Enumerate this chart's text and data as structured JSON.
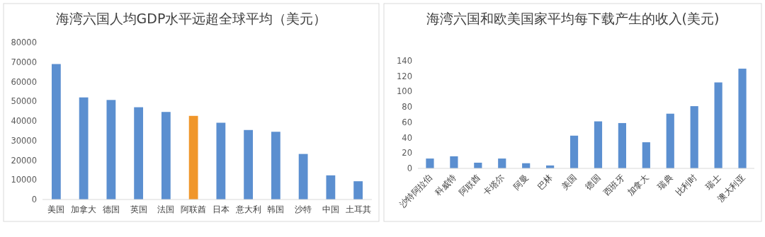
{
  "chart_data": [
    {
      "type": "bar",
      "title": "海湾六国人均GDP水平远超全球平均（美元）",
      "categories": [
        "美国",
        "加拿大",
        "德国",
        "英国",
        "法国",
        "阿联酋",
        "日本",
        "意大利",
        "韩国",
        "沙特",
        "中国",
        "土耳其"
      ],
      "values": [
        69000,
        52000,
        50700,
        47000,
        44600,
        42600,
        39100,
        35400,
        34500,
        23200,
        12300,
        9300
      ],
      "colors": [
        "#5b8fd0",
        "#5b8fd0",
        "#5b8fd0",
        "#5b8fd0",
        "#5b8fd0",
        "#f0962a",
        "#5b8fd0",
        "#5b8fd0",
        "#5b8fd0",
        "#5b8fd0",
        "#5b8fd0",
        "#5b8fd0"
      ],
      "ylim": [
        0,
        80000
      ],
      "yticks": [
        0,
        10000,
        20000,
        30000,
        40000,
        50000,
        60000,
        70000,
        80000
      ]
    },
    {
      "type": "bar",
      "title": "海湾六国和欧美国家平均每下载产生的收入(美元)",
      "categories": [
        "沙特阿拉伯",
        "科威特",
        "阿联酋",
        "卡塔尔",
        "阿曼",
        "巴林",
        "美国",
        "德国",
        "西班牙",
        "加拿大",
        "瑞典",
        "比利时",
        "瑞士",
        "澳大利亚"
      ],
      "values": [
        12.8,
        15.7,
        7.4,
        12.8,
        6.7,
        3.8,
        42.6,
        61.2,
        59,
        34,
        71.2,
        81,
        111.9,
        129.8
      ],
      "color": "#5b8fd0",
      "ylim": [
        0,
        140
      ],
      "yticks": [
        0,
        20,
        40,
        60,
        80,
        100,
        120,
        140
      ]
    }
  ]
}
